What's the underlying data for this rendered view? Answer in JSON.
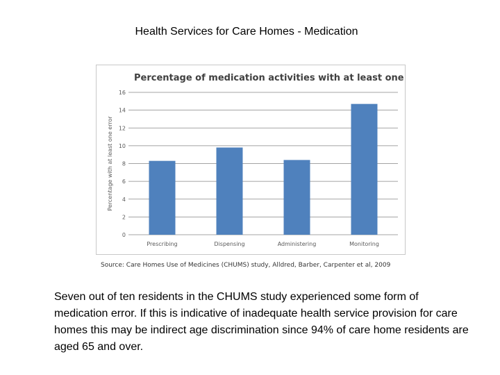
{
  "slide": {
    "title": "Health Services for Care Homes - Medication",
    "source": "Source: Care Homes Use of Medicines (CHUMS) study, Alldred, Barber, Carpenter et al, 2009",
    "body": "Seven out of ten residents in the CHUMS study experienced some form of medication error. If this is indicative of inadequate health service provision for care homes this may be indirect age discrimination since 94% of care home residents are aged 65 and over."
  },
  "colors": {
    "bar": "#4f81bd",
    "grid": "#868686",
    "axis_text": "#595959"
  },
  "chart_data": {
    "type": "bar",
    "title": "Percentage of medication activities with at least one error",
    "categories": [
      "Prescribing",
      "Dispensing",
      "Administering",
      "Monitoring"
    ],
    "values": [
      8.3,
      9.8,
      8.4,
      14.7
    ],
    "xlabel": "",
    "ylabel": "Percentage with at least one error",
    "ylim": [
      0,
      16
    ],
    "yticks": [
      0,
      2,
      4,
      6,
      8,
      10,
      12,
      14,
      16
    ],
    "grid": true,
    "legend": "none"
  }
}
